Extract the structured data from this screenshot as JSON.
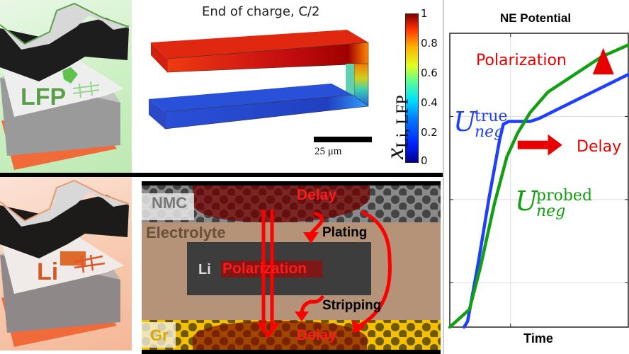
{
  "panels": {
    "lfp_cell": {
      "label": "LFP",
      "color": "#5a9e4c"
    },
    "li_cell": {
      "label": "Li",
      "color": "#d9571f"
    }
  },
  "simulation": {
    "title": "End of charge, C/2",
    "scale_bar_label": "25 μm",
    "colorbar": {
      "label_main": "x",
      "label_sub": "Li, LFP",
      "ticks": [
        "1",
        "0.8",
        "0.6",
        "0.4",
        "0.2",
        "0"
      ],
      "range": [
        0,
        1
      ],
      "colormap": "jet"
    }
  },
  "schematic": {
    "layers": {
      "cathode": "NMC",
      "electrolyte": "Electrolyte",
      "reference": "Li",
      "anode": "Gr"
    },
    "labels": {
      "delay_top": "Delay",
      "delay_bottom": "Delay",
      "polarization": "Polarization",
      "plating": "Plating",
      "stripping": "Stripping"
    },
    "colors": {
      "nmc_bg": "#8a8a8a",
      "electrolyte": "#b49378",
      "li_block": "#3d3d3d",
      "graphite_bg": "#f5c000",
      "delay_region": "#8b1a1a",
      "arrow": "#ff0000"
    }
  },
  "chart_data": {
    "type": "line",
    "title": "NE Potential",
    "xlabel": "Time",
    "ylabel": "",
    "xlim": [
      0,
      1
    ],
    "ylim": [
      0,
      1
    ],
    "grid": true,
    "series": [
      {
        "name": "U_neg^true",
        "label_main": "U",
        "label_sup": "true",
        "label_sub": "neg",
        "color": "#1f3fff",
        "x": [
          0.08,
          0.1,
          0.16,
          0.22,
          0.28,
          0.3,
          0.33,
          0.38,
          0.45,
          0.5,
          0.6,
          0.7,
          0.8,
          0.9,
          1.0
        ],
        "y": [
          0.0,
          0.02,
          0.22,
          0.44,
          0.64,
          0.69,
          0.7,
          0.7,
          0.7,
          0.71,
          0.74,
          0.77,
          0.8,
          0.83,
          0.86
        ]
      },
      {
        "name": "U_neg^probed",
        "label_main": "U",
        "label_sup": "probed",
        "label_sub": "neg",
        "color": "#12a012",
        "x": [
          0.0,
          0.11,
          0.17,
          0.25,
          0.32,
          0.38,
          0.45,
          0.55,
          0.65,
          0.75,
          0.85,
          1.0
        ],
        "y": [
          0.0,
          0.06,
          0.2,
          0.42,
          0.58,
          0.66,
          0.73,
          0.8,
          0.84,
          0.88,
          0.92,
          0.96
        ]
      }
    ],
    "annotations": [
      {
        "text": "Polarization",
        "color": "#e60000",
        "arrow": "up"
      },
      {
        "text": "Delay",
        "color": "#e60000",
        "arrow": "right"
      }
    ]
  }
}
